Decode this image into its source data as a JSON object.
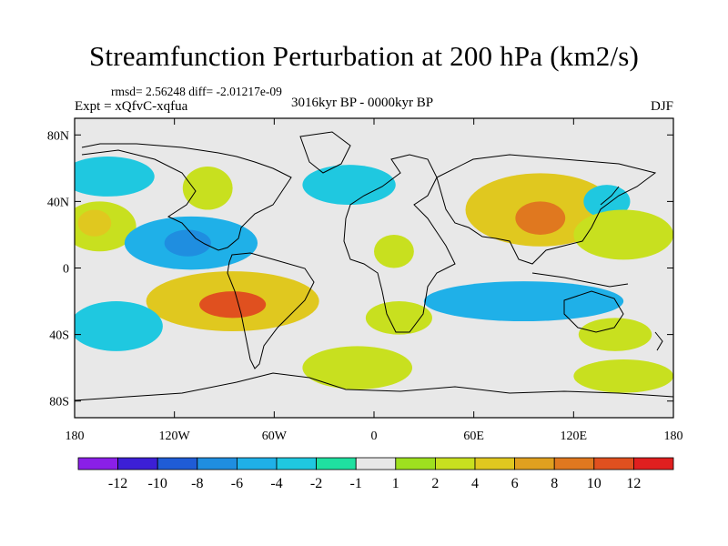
{
  "title": "Streamfunction Perturbation at 200 hPa (km2/s)",
  "stats": {
    "rmsd_text": "rmsd= 2.56248 diff= -2.01217e-09"
  },
  "experiment": "Expt = xQfvC-xqfua",
  "period": "3016kyr BP - 0000kyr BP",
  "season": "DJF",
  "chart_data": {
    "type": "heatmap",
    "title": "Streamfunction Perturbation at 200 hPa (km2/s)",
    "projection": "cylindrical equidistant",
    "x_range": [
      -180,
      180
    ],
    "y_range": [
      -90,
      90
    ],
    "x_ticks": [
      {
        "value": -180,
        "label": "180"
      },
      {
        "value": -120,
        "label": "120W"
      },
      {
        "value": -60,
        "label": "60W"
      },
      {
        "value": 0,
        "label": "0"
      },
      {
        "value": 60,
        "label": "60E"
      },
      {
        "value": 120,
        "label": "120E"
      },
      {
        "value": 180,
        "label": "180"
      }
    ],
    "y_ticks": [
      {
        "value": 80,
        "label": "80N"
      },
      {
        "value": 40,
        "label": "40N"
      },
      {
        "value": 0,
        "label": "0"
      },
      {
        "value": -40,
        "label": "40S"
      },
      {
        "value": -80,
        "label": "80S"
      }
    ],
    "colorbar": {
      "levels": [
        "-12",
        "-10",
        "-8",
        "-6",
        "-4",
        "-2",
        "-1",
        "1",
        "2",
        "4",
        "6",
        "8",
        "10",
        "12"
      ],
      "colors": [
        "#8a1fe8",
        "#3c1fd6",
        "#1f5cd6",
        "#1f8ee0",
        "#1fb0e8",
        "#1fc8e0",
        "#1fe0a0",
        "#e8e8e8",
        "#9ee01f",
        "#c8e01f",
        "#e0c81f",
        "#e0a01f",
        "#e0781f",
        "#e0501f",
        "#e01f1f"
      ]
    },
    "anomalies": [
      {
        "name": "North Pacific positive",
        "lon": -165,
        "lat": 25,
        "rlon": 22,
        "rlat": 15,
        "level": "2"
      },
      {
        "name": "North Pacific core",
        "lon": -168,
        "lat": 27,
        "rlon": 10,
        "rlat": 8,
        "level": "4"
      },
      {
        "name": "North Pacific negative",
        "lon": -160,
        "lat": 55,
        "rlon": 28,
        "rlat": 12,
        "level": "-2"
      },
      {
        "name": "North America positive",
        "lon": -100,
        "lat": 48,
        "rlon": 15,
        "rlat": 13,
        "level": "2"
      },
      {
        "name": "Tropical East Pacific negative",
        "lon": -110,
        "lat": 15,
        "rlon": 40,
        "rlat": 16,
        "level": "-4"
      },
      {
        "name": "Tropical East Pacific core",
        "lon": -112,
        "lat": 15,
        "rlon": 14,
        "rlat": 8,
        "level": "-6"
      },
      {
        "name": "South America positive",
        "lon": -85,
        "lat": -20,
        "rlon": 52,
        "rlat": 18,
        "level": "4"
      },
      {
        "name": "South America core",
        "lon": -85,
        "lat": -22,
        "rlon": 20,
        "rlat": 8,
        "level": "10"
      },
      {
        "name": "South Pacific negative",
        "lon": -155,
        "lat": -35,
        "rlon": 28,
        "rlat": 15,
        "level": "-2"
      },
      {
        "name": "Southern Ocean positive",
        "lon": -10,
        "lat": -60,
        "rlon": 33,
        "rlat": 13,
        "level": "2"
      },
      {
        "name": "North Atlantic negative",
        "lon": -15,
        "lat": 50,
        "rlon": 28,
        "rlat": 12,
        "level": "-2"
      },
      {
        "name": "Africa positive",
        "lon": 12,
        "lat": 10,
        "rlon": 12,
        "rlat": 10,
        "level": "2"
      },
      {
        "name": "South Africa positive",
        "lon": 15,
        "lat": -30,
        "rlon": 20,
        "rlat": 10,
        "level": "2"
      },
      {
        "name": "Asia positive",
        "lon": 100,
        "lat": 35,
        "rlon": 45,
        "rlat": 22,
        "level": "4"
      },
      {
        "name": "Asia core",
        "lon": 100,
        "lat": 30,
        "rlon": 15,
        "rlat": 10,
        "level": "8"
      },
      {
        "name": "Japan negative",
        "lon": 140,
        "lat": 40,
        "rlon": 14,
        "rlat": 10,
        "level": "-2"
      },
      {
        "name": "North Pacific West positive",
        "lon": 150,
        "lat": 20,
        "rlon": 30,
        "rlat": 15,
        "level": "2"
      },
      {
        "name": "Indian Ocean negative",
        "lon": 90,
        "lat": -20,
        "rlon": 60,
        "rlat": 12,
        "level": "-4"
      },
      {
        "name": "Australia positive",
        "lon": 145,
        "lat": -40,
        "rlon": 22,
        "rlat": 10,
        "level": "2"
      },
      {
        "name": "Southern Ocean Asia positive",
        "lon": 150,
        "lat": -65,
        "rlon": 30,
        "rlat": 10,
        "level": "2"
      }
    ]
  }
}
